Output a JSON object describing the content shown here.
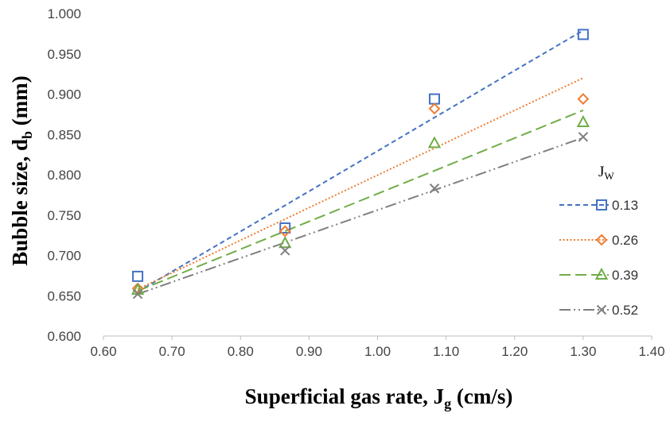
{
  "chart_data": {
    "type": "scatter",
    "xlabel": "Superficial gas rate, J",
    "xlabel_sub": "g",
    "xlabel_suffix": " (cm/s)",
    "ylabel": "Bubble size, d",
    "ylabel_sub": "b",
    "ylabel_suffix": " (mm)",
    "xlim": [
      0.6,
      1.4
    ],
    "ylim": [
      0.6,
      1.0
    ],
    "x_ticks": [
      "0.60",
      "0.70",
      "0.80",
      "0.90",
      "1.00",
      "1.10",
      "1.20",
      "1.30",
      "1.40"
    ],
    "y_ticks": [
      "0.600",
      "0.650",
      "0.700",
      "0.750",
      "0.800",
      "0.850",
      "0.900",
      "0.950",
      "1.000"
    ],
    "grid": false,
    "legend": {
      "title": "J",
      "title_sub": "W",
      "position": "right"
    },
    "series": [
      {
        "name": "0.13",
        "color": "#4472c4",
        "marker": "square",
        "dash": "6,4",
        "x": [
          0.65,
          0.865,
          1.083,
          1.3
        ],
        "y": [
          0.674,
          0.734,
          0.894,
          0.974
        ],
        "trend": [
          [
            0.65,
            0.655
          ],
          [
            0.865,
            0.762
          ],
          [
            1.083,
            0.871
          ],
          [
            1.3,
            0.979
          ]
        ]
      },
      {
        "name": "0.26",
        "color": "#ed7d31",
        "marker": "diamond",
        "dash": "2,2.5",
        "x": [
          0.65,
          0.865,
          1.083,
          1.3
        ],
        "y": [
          0.659,
          0.73,
          0.882,
          0.894
        ],
        "trend": [
          [
            0.65,
            0.658
          ],
          [
            0.865,
            0.745
          ],
          [
            1.083,
            0.833
          ],
          [
            1.3,
            0.92
          ]
        ]
      },
      {
        "name": "0.39",
        "color": "#70ad47",
        "marker": "triangle",
        "dash": "14,6",
        "x": [
          0.65,
          0.865,
          1.083,
          1.3
        ],
        "y": [
          0.657,
          0.715,
          0.839,
          0.865
        ],
        "trend": [
          [
            0.65,
            0.656
          ],
          [
            0.865,
            0.73
          ],
          [
            1.083,
            0.805
          ],
          [
            1.3,
            0.88
          ]
        ]
      },
      {
        "name": "0.52",
        "color": "#7f7f7f",
        "marker": "x",
        "dash": "14,4,2,4,2,4",
        "x": [
          0.65,
          0.865,
          1.083,
          1.3
        ],
        "y": [
          0.652,
          0.706,
          0.783,
          0.847
        ],
        "trend": [
          [
            0.65,
            0.652
          ],
          [
            0.865,
            0.716
          ],
          [
            1.083,
            0.781
          ],
          [
            1.3,
            0.846
          ]
        ]
      }
    ]
  }
}
